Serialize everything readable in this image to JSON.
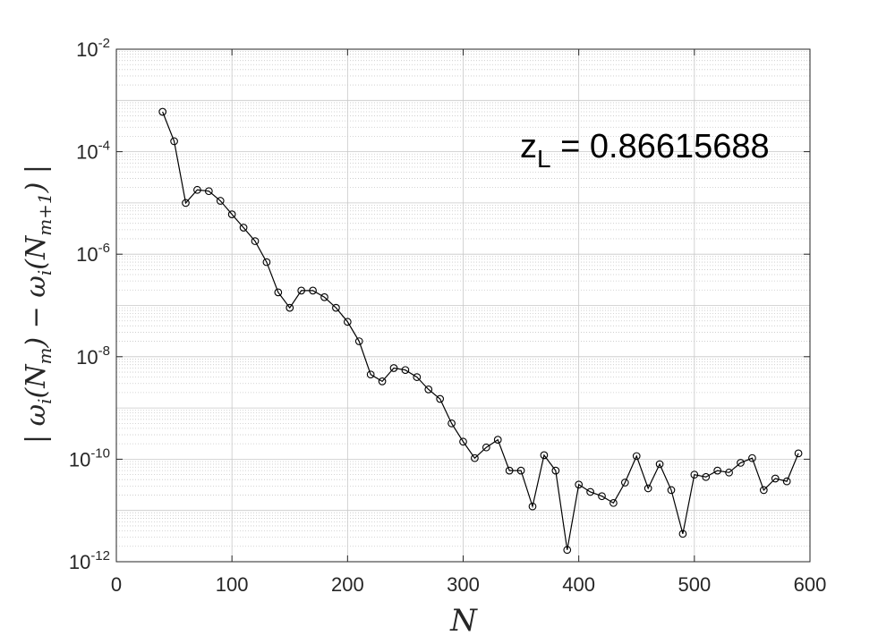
{
  "chart_data": {
    "type": "line",
    "xlabel": "N",
    "ylabel": "| ωi(Nm) − ωi(Nm+1) |",
    "xlim": [
      0,
      600
    ],
    "ylim": [
      1e-12,
      0.01
    ],
    "yscale": "log",
    "grid": true,
    "minor_grid": true,
    "xticks": [
      "0",
      "100",
      "200",
      "300",
      "400",
      "500",
      "600"
    ],
    "yticks": [
      {
        "base": "10",
        "exp": "-12"
      },
      {
        "base": "10",
        "exp": "-10"
      },
      {
        "base": "10",
        "exp": "-8"
      },
      {
        "base": "10",
        "exp": "-6"
      },
      {
        "base": "10",
        "exp": "-4"
      },
      {
        "base": "10",
        "exp": "-2"
      }
    ],
    "annotation": {
      "var": "z",
      "sub": "L",
      "rest": " = 0.86615688"
    },
    "colors": {
      "line": "#000000",
      "axis": "#262626",
      "grid": "#c8c8c8"
    },
    "series": [
      {
        "marker": "circle",
        "x": [
          40,
          50,
          60,
          70,
          80,
          90,
          100,
          110,
          120,
          130,
          140,
          150,
          160,
          170,
          180,
          190,
          200,
          210,
          220,
          230,
          240,
          250,
          260,
          270,
          280,
          290,
          300,
          310,
          320,
          330,
          340,
          350,
          360,
          370,
          380,
          390,
          400,
          410,
          420,
          430,
          440,
          450,
          460,
          470,
          480,
          490,
          500,
          510,
          520,
          530,
          540,
          550,
          560,
          570,
          580,
          590
        ],
        "y": [
          0.0006,
          0.00016,
          1e-05,
          1.8e-05,
          1.7e-05,
          1.1e-05,
          6e-06,
          3.3e-06,
          1.8e-06,
          7e-07,
          1.8e-07,
          9e-08,
          1.95e-07,
          1.95e-07,
          1.45e-07,
          9e-08,
          4.8e-08,
          2e-08,
          4.5e-09,
          3.3e-09,
          6e-09,
          5.5e-09,
          4e-09,
          2.3e-09,
          1.5e-09,
          5e-10,
          2.2e-10,
          1.05e-10,
          1.7e-10,
          2.4e-10,
          6e-11,
          6e-11,
          1.2e-11,
          1.2e-10,
          6e-11,
          1.7e-12,
          3.2e-11,
          2.3e-11,
          1.9e-11,
          1.4e-11,
          3.5e-11,
          1.15e-10,
          2.7e-11,
          8e-11,
          2.5e-11,
          3.5e-12,
          5e-11,
          4.5e-11,
          6e-11,
          5.5e-11,
          8.5e-11,
          1.05e-10,
          2.5e-11,
          4.2e-11,
          3.7e-11,
          1.3e-10
        ]
      }
    ]
  }
}
